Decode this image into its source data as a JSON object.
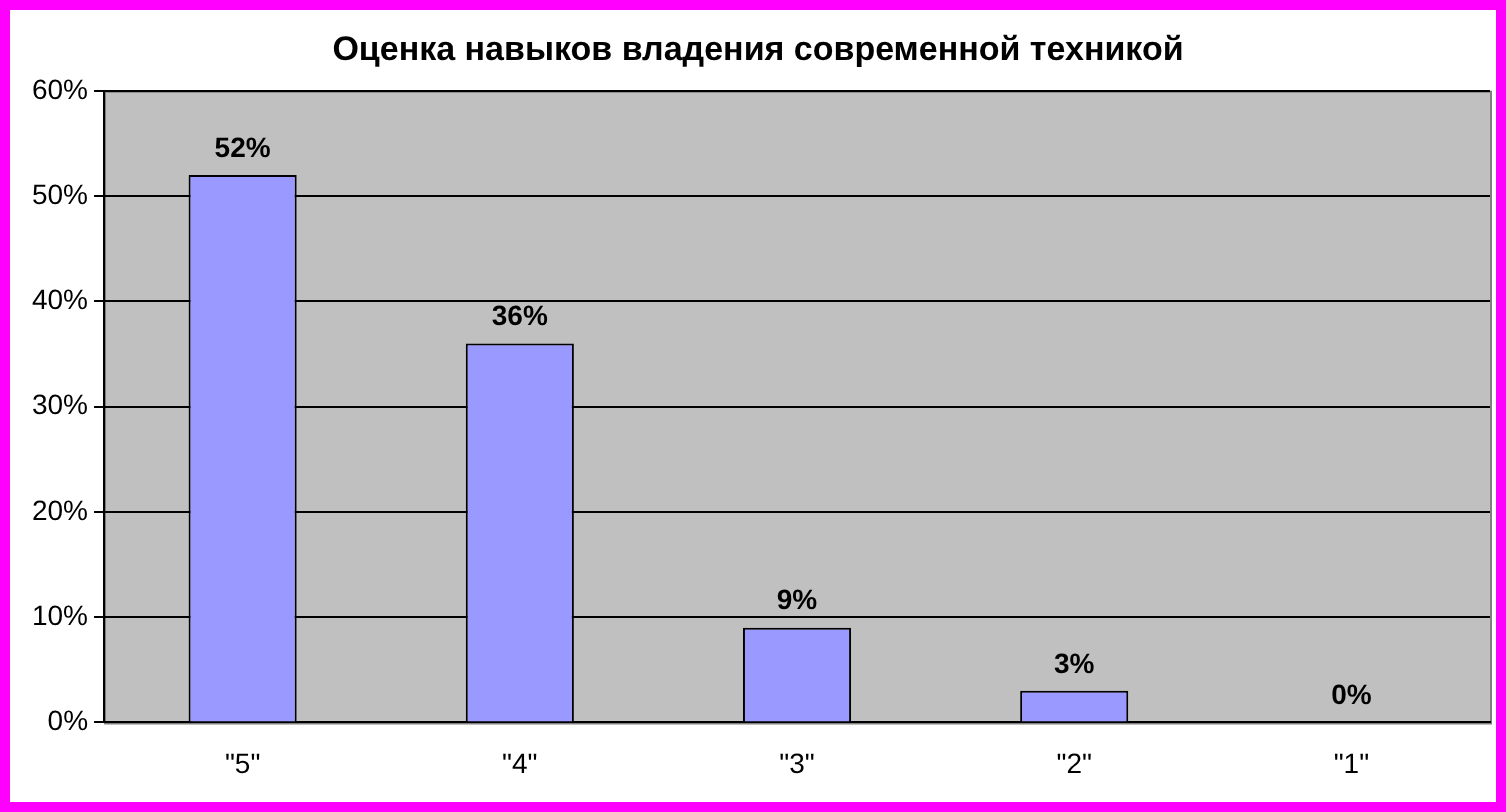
{
  "chart_data": {
    "type": "bar",
    "title": "Оценка навыков владения современной техникой",
    "categories": [
      "\"5\"",
      "\"4\"",
      "\"3\"",
      "\"2\"",
      "\"1\""
    ],
    "values": [
      52,
      36,
      9,
      3,
      0
    ],
    "value_labels": [
      "52%",
      "36%",
      "9%",
      "3%",
      "0%"
    ],
    "color": "#9999ff",
    "ylim": [
      0,
      60
    ],
    "yticks": [
      {
        "value": 0,
        "label": "0%"
      },
      {
        "value": 10,
        "label": "10%"
      },
      {
        "value": 20,
        "label": "20%"
      },
      {
        "value": 30,
        "label": "30%"
      },
      {
        "value": 40,
        "label": "40%"
      },
      {
        "value": 50,
        "label": "50%"
      },
      {
        "value": 60,
        "label": "60%"
      }
    ],
    "grid": "y",
    "legend": false
  }
}
